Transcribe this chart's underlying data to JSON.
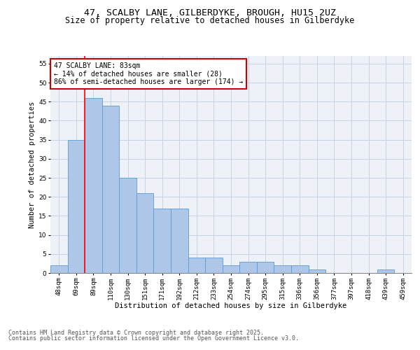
{
  "title_line1": "47, SCALBY LANE, GILBERDYKE, BROUGH, HU15 2UZ",
  "title_line2": "Size of property relative to detached houses in Gilberdyke",
  "xlabel": "Distribution of detached houses by size in Gilberdyke",
  "ylabel": "Number of detached properties",
  "categories": [
    "48sqm",
    "69sqm",
    "89sqm",
    "110sqm",
    "130sqm",
    "151sqm",
    "171sqm",
    "192sqm",
    "212sqm",
    "233sqm",
    "254sqm",
    "274sqm",
    "295sqm",
    "315sqm",
    "336sqm",
    "356sqm",
    "377sqm",
    "397sqm",
    "418sqm",
    "439sqm",
    "459sqm"
  ],
  "values": [
    2,
    35,
    46,
    44,
    25,
    21,
    17,
    17,
    4,
    4,
    2,
    3,
    3,
    2,
    2,
    1,
    0,
    0,
    0,
    1,
    0
  ],
  "bar_color": "#aec6e8",
  "bar_edge_color": "#5b9bd5",
  "annotation_text": "47 SCALBY LANE: 83sqm\n← 14% of detached houses are smaller (28)\n86% of semi-detached houses are larger (174) →",
  "annotation_box_color": "#ffffff",
  "annotation_box_edge": "#cc0000",
  "annotation_text_color": "#000000",
  "redline_x": 1.5,
  "ylim": [
    0,
    57
  ],
  "yticks": [
    0,
    5,
    10,
    15,
    20,
    25,
    30,
    35,
    40,
    45,
    50,
    55
  ],
  "bg_color": "#eef2f8",
  "footer_line1": "Contains HM Land Registry data © Crown copyright and database right 2025.",
  "footer_line2": "Contains public sector information licensed under the Open Government Licence v3.0.",
  "title_fontsize": 9.5,
  "subtitle_fontsize": 8.5,
  "axis_label_fontsize": 7.5,
  "tick_fontsize": 6.5,
  "annotation_fontsize": 7,
  "footer_fontsize": 6
}
